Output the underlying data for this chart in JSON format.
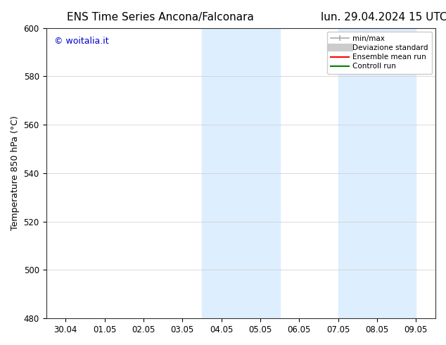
{
  "title_left": "ENS Time Series Ancona/Falconara",
  "title_right": "lun. 29.04.2024 15 UTC",
  "ylabel": "Temperature 850 hPa (°C)",
  "watermark": "© woitalia.it",
  "watermark_color": "#0000cc",
  "ylim": [
    480,
    600
  ],
  "yticks": [
    480,
    500,
    520,
    540,
    560,
    580,
    600
  ],
  "xtick_labels": [
    "30.04",
    "01.05",
    "02.05",
    "03.05",
    "04.05",
    "05.05",
    "06.05",
    "07.05",
    "08.05",
    "09.05"
  ],
  "bg_color": "#ffffff",
  "plot_bg_color": "#ffffff",
  "shaded_regions": [
    {
      "xstart": 4.0,
      "xend": 5.0,
      "color": "#ddeeff"
    },
    {
      "xstart": 5.0,
      "xend": 6.0,
      "color": "#ddeeff"
    },
    {
      "xstart": 7.5,
      "xend": 8.5,
      "color": "#ddeeff"
    },
    {
      "xstart": 8.5,
      "xend": 9.5,
      "color": "#ddeeff"
    }
  ],
  "legend_items": [
    {
      "label": "min/max",
      "color": "#aaaaaa",
      "lw": 1.5,
      "style": "|-|"
    },
    {
      "label": "Deviazione standard",
      "color": "#cccccc",
      "lw": 8
    },
    {
      "label": "Ensemble mean run",
      "color": "#ff0000",
      "lw": 1.5
    },
    {
      "label": "Controll run",
      "color": "#008000",
      "lw": 1.5
    }
  ],
  "title_fontsize": 11,
  "axis_fontsize": 9,
  "tick_fontsize": 8.5,
  "font_family": "DejaVu Sans"
}
